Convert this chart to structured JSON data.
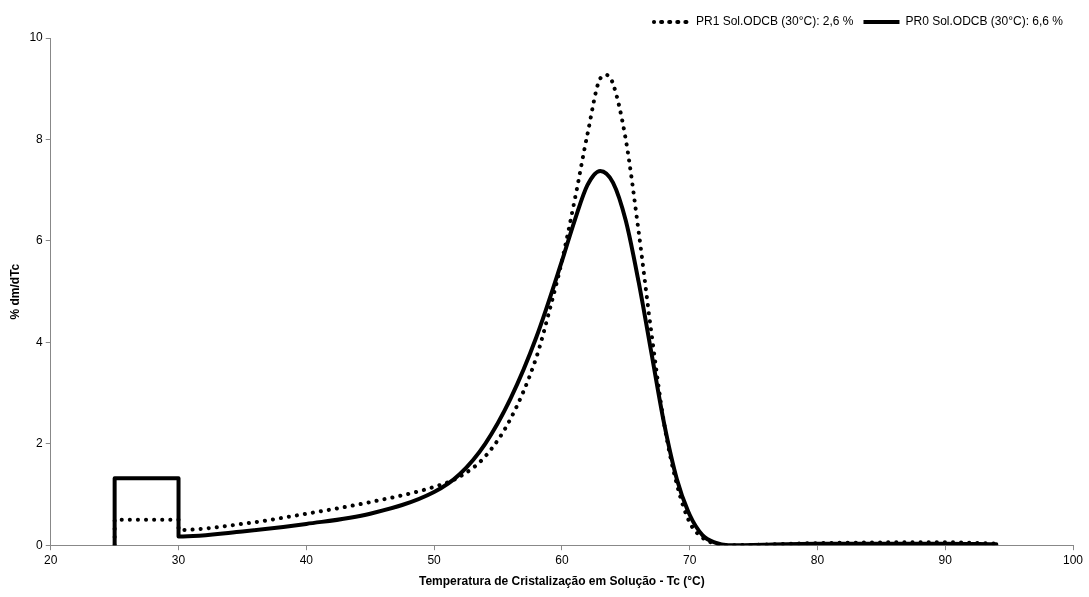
{
  "chart_data": {
    "type": "line",
    "xlabel": "Temperatura de Cristalização em Solução - Tc (°C)",
    "ylabel": "% dm/dTc",
    "xlim": [
      20,
      100
    ],
    "xticks": [
      20,
      30,
      40,
      50,
      60,
      70,
      80,
      90,
      100
    ],
    "ylim": [
      0,
      10
    ],
    "yticks": [
      0,
      2,
      4,
      6,
      8,
      10
    ],
    "grid": false,
    "legend": "top right",
    "marker": "none",
    "series": [
      {
        "name": "PR1 Sol.ODCB (30°C): 2,6 %",
        "color": "#000000",
        "line_style": "dotted",
        "x": [
          25,
          25,
          30,
          30,
          35,
          40,
          45,
          50,
          52,
          54,
          56,
          58,
          59,
          60,
          61,
          62,
          63,
          63.5,
          64,
          65,
          66,
          67,
          68,
          69,
          70,
          71,
          72,
          73,
          80,
          90,
          94
        ],
        "values": [
          0,
          0.5,
          0.5,
          0.3,
          0.42,
          0.62,
          0.85,
          1.15,
          1.35,
          1.75,
          2.5,
          3.7,
          4.6,
          5.6,
          6.8,
          8.1,
          9.2,
          9.27,
          9.1,
          8,
          6.2,
          4.2,
          2.4,
          1.2,
          0.45,
          0.15,
          0.03,
          0,
          0.04,
          0.06,
          0.03
        ]
      },
      {
        "name": "PR0 Sol.ODCB (30°C): 6,6 %",
        "color": "#000000",
        "line_style": "solid",
        "x": [
          25,
          25,
          30,
          30,
          35,
          40,
          45,
          50,
          52,
          54,
          56,
          58,
          60,
          61,
          62,
          63,
          64,
          65,
          66,
          67,
          68,
          69,
          70,
          71,
          72,
          73,
          80,
          90,
          94
        ],
        "values": [
          0,
          1.32,
          1.32,
          0.17,
          0.27,
          0.42,
          0.62,
          1.05,
          1.4,
          2,
          2.9,
          4.1,
          5.6,
          6.4,
          7.1,
          7.38,
          7.15,
          6.4,
          5.2,
          3.8,
          2.4,
          1.3,
          0.6,
          0.2,
          0.05,
          0,
          0.03,
          0.03,
          0.02
        ]
      }
    ]
  }
}
